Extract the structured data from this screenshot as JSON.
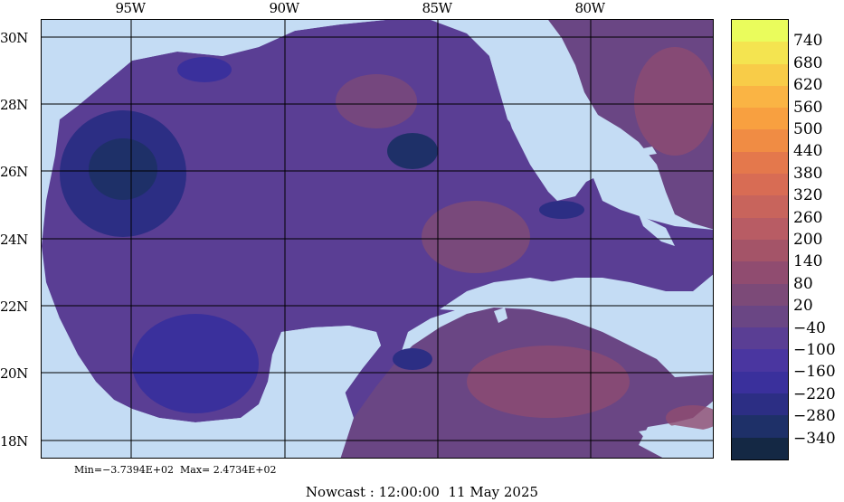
{
  "map": {
    "lon_ticks": [
      "95W",
      "90W",
      "85W",
      "80W"
    ],
    "lat_ticks": [
      "30N",
      "28N",
      "26N",
      "24N",
      "22N",
      "20N",
      "18N"
    ],
    "land_color": "#c4dcf4",
    "grid_color": "#000000"
  },
  "colorbar": {
    "labels": [
      "740",
      "680",
      "620",
      "560",
      "500",
      "440",
      "380",
      "320",
      "260",
      "200",
      "140",
      "80",
      "20",
      "−40",
      "−100",
      "−160",
      "−220",
      "−280",
      "−340"
    ],
    "colors": [
      "#eafc5c",
      "#f4e450",
      "#f8cc48",
      "#fab444",
      "#f8a040",
      "#f08c44",
      "#e4784c",
      "#d86c54",
      "#c8645c",
      "#b85c64",
      "#a45468",
      "#904c70",
      "#7c4a78",
      "#6a4684",
      "#5a3e94",
      "#4a36a0",
      "#3a309c",
      "#2c2e84",
      "#1e3068",
      "#142844"
    ]
  },
  "stats": "Min=−3.7394E+02  Max= 2.4734E+02",
  "caption": "Nowcast : 12:00:00  11 May 2025"
}
